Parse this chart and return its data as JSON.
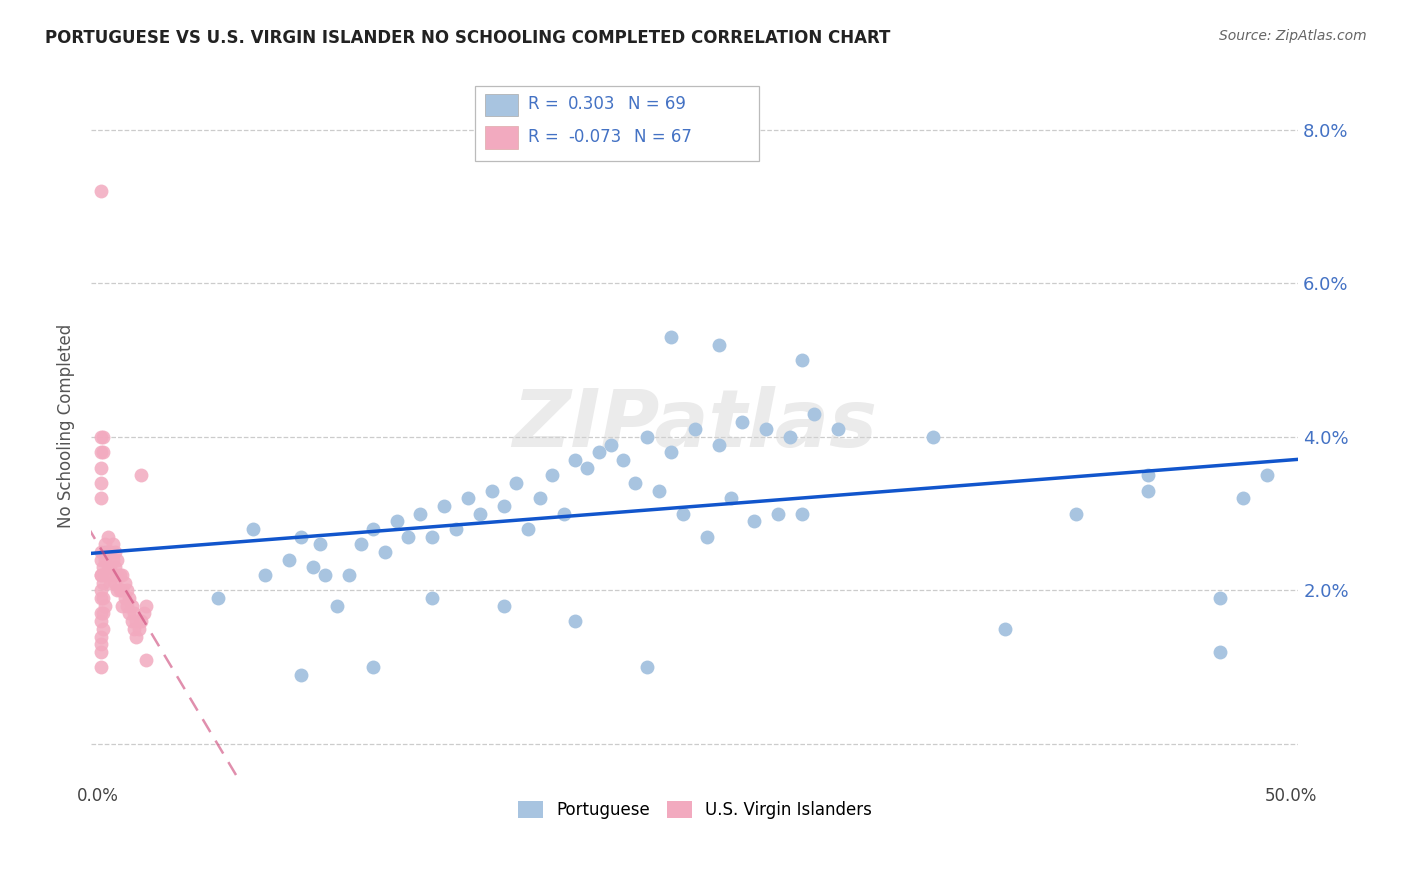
{
  "title": "PORTUGUESE VS U.S. VIRGIN ISLANDER NO SCHOOLING COMPLETED CORRELATION CHART",
  "source": "Source: ZipAtlas.com",
  "ylabel": "No Schooling Completed",
  "xlim": [
    -0.003,
    0.503
  ],
  "ylim": [
    -0.005,
    0.088
  ],
  "xticks": [
    0.0,
    0.1,
    0.2,
    0.3,
    0.4,
    0.5
  ],
  "yticks": [
    0.0,
    0.02,
    0.04,
    0.06,
    0.08
  ],
  "right_ytick_labels": [
    "",
    "2.0%",
    "4.0%",
    "6.0%",
    "8.0%"
  ],
  "left_ytick_labels": [
    "",
    "",
    "",
    "",
    ""
  ],
  "xtick_labels": [
    "0.0%",
    "",
    "",
    "",
    "",
    "50.0%"
  ],
  "blue_color": "#a8c4e0",
  "pink_color": "#f2aabf",
  "trend_blue": "#1155cc",
  "trend_pink": "#cc4477",
  "blue_r": "0.303",
  "blue_n": "69",
  "pink_r": "-0.073",
  "pink_n": "67",
  "legend_text_color": "#4472c4",
  "watermark": "ZIPatlas",
  "blue_points_x": [
    0.003,
    0.05,
    0.065,
    0.07,
    0.08,
    0.085,
    0.09,
    0.093,
    0.095,
    0.1,
    0.105,
    0.11,
    0.115,
    0.12,
    0.125,
    0.13,
    0.135,
    0.14,
    0.145,
    0.15,
    0.155,
    0.16,
    0.165,
    0.17,
    0.175,
    0.18,
    0.185,
    0.19,
    0.195,
    0.2,
    0.205,
    0.21,
    0.215,
    0.22,
    0.225,
    0.23,
    0.235,
    0.24,
    0.245,
    0.25,
    0.255,
    0.26,
    0.265,
    0.27,
    0.275,
    0.28,
    0.285,
    0.29,
    0.295,
    0.3,
    0.24,
    0.26,
    0.295,
    0.31,
    0.35,
    0.38,
    0.41,
    0.44,
    0.47,
    0.49,
    0.14,
    0.17,
    0.2,
    0.23,
    0.085,
    0.115,
    0.44,
    0.47,
    0.48
  ],
  "blue_points_y": [
    0.025,
    0.019,
    0.028,
    0.022,
    0.024,
    0.027,
    0.023,
    0.026,
    0.022,
    0.018,
    0.022,
    0.026,
    0.028,
    0.025,
    0.029,
    0.027,
    0.03,
    0.027,
    0.031,
    0.028,
    0.032,
    0.03,
    0.033,
    0.031,
    0.034,
    0.028,
    0.032,
    0.035,
    0.03,
    0.037,
    0.036,
    0.038,
    0.039,
    0.037,
    0.034,
    0.04,
    0.033,
    0.038,
    0.03,
    0.041,
    0.027,
    0.039,
    0.032,
    0.042,
    0.029,
    0.041,
    0.03,
    0.04,
    0.03,
    0.043,
    0.053,
    0.052,
    0.05,
    0.041,
    0.04,
    0.015,
    0.03,
    0.035,
    0.019,
    0.035,
    0.019,
    0.018,
    0.016,
    0.01,
    0.009,
    0.01,
    0.033,
    0.012,
    0.032
  ],
  "pink_points_x": [
    0.001,
    0.001,
    0.001,
    0.001,
    0.001,
    0.001,
    0.001,
    0.001,
    0.001,
    0.001,
    0.001,
    0.001,
    0.002,
    0.002,
    0.002,
    0.002,
    0.002,
    0.003,
    0.003,
    0.003,
    0.003,
    0.004,
    0.004,
    0.004,
    0.005,
    0.005,
    0.005,
    0.006,
    0.006,
    0.006,
    0.007,
    0.007,
    0.007,
    0.008,
    0.008,
    0.008,
    0.009,
    0.009,
    0.01,
    0.01,
    0.01,
    0.011,
    0.011,
    0.012,
    0.012,
    0.013,
    0.013,
    0.014,
    0.014,
    0.015,
    0.015,
    0.016,
    0.016,
    0.017,
    0.018,
    0.019,
    0.02,
    0.001,
    0.001,
    0.001,
    0.001,
    0.001,
    0.002,
    0.002,
    0.018,
    0.02,
    0.001
  ],
  "pink_points_y": [
    0.025,
    0.024,
    0.022,
    0.02,
    0.019,
    0.017,
    0.016,
    0.014,
    0.013,
    0.012,
    0.01,
    0.022,
    0.023,
    0.021,
    0.019,
    0.017,
    0.015,
    0.026,
    0.024,
    0.022,
    0.018,
    0.027,
    0.025,
    0.023,
    0.025,
    0.023,
    0.021,
    0.026,
    0.024,
    0.022,
    0.025,
    0.023,
    0.021,
    0.024,
    0.022,
    0.02,
    0.022,
    0.02,
    0.022,
    0.02,
    0.018,
    0.021,
    0.019,
    0.02,
    0.018,
    0.019,
    0.017,
    0.018,
    0.016,
    0.017,
    0.015,
    0.016,
    0.014,
    0.015,
    0.016,
    0.017,
    0.018,
    0.04,
    0.038,
    0.036,
    0.034,
    0.032,
    0.04,
    0.038,
    0.035,
    0.011,
    0.072
  ]
}
